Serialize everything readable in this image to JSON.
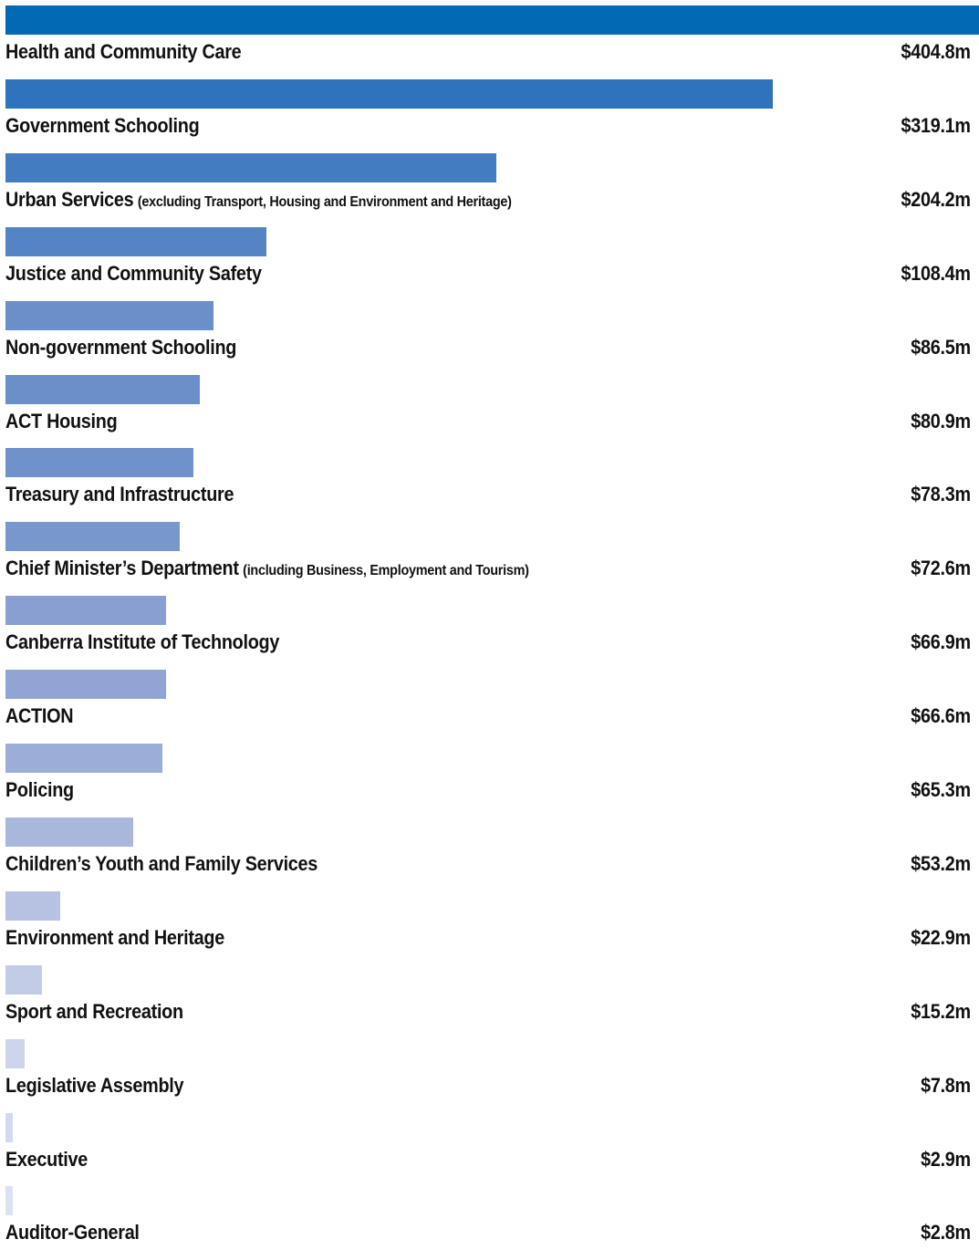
{
  "chart_data": {
    "type": "bar",
    "orientation": "horizontal",
    "categories": [
      "Health and Community Care",
      "Government Schooling",
      "Urban Services",
      "Justice and Community Safety",
      "Non-government Schooling",
      "ACT Housing",
      "Treasury and Infrastructure",
      "Chief Minister’s Department",
      "Canberra Institute of Technology",
      "ACTION",
      "Policing",
      "Children’s Youth and Family Services",
      "Environment and Heritage",
      "Sport and Recreation",
      "Legislative Assembly",
      "Executive",
      "Auditor-General"
    ],
    "values": [
      404.8,
      319.1,
      204.2,
      108.4,
      86.5,
      80.9,
      78.3,
      72.6,
      66.9,
      66.6,
      65.3,
      53.2,
      22.9,
      15.2,
      7.8,
      2.9,
      2.8
    ],
    "notes": [
      "",
      "",
      "(excluding Transport, Housing and Environment and Heritage)",
      "",
      "",
      "",
      "",
      "(including Business, Employment and Tourism)",
      "",
      "",
      "",
      "",
      "",
      "",
      "",
      "",
      ""
    ],
    "value_labels": [
      "$404.8m",
      "$319.1m",
      "$204.2m",
      "$108.4m",
      "$86.5m",
      "$80.9m",
      "$78.3m",
      "$72.6m",
      "$66.9m",
      "$66.6m",
      "$65.3m",
      "$53.2m",
      "$22.9m",
      "$15.2m",
      "$7.8m",
      "$2.9m",
      "$2.8m"
    ],
    "colors": [
      "#006ab4",
      "#2d74bd",
      "#437cc1",
      "#5584c5",
      "#6b8fc9",
      "#6b8fc9",
      "#6f92cb",
      "#7797cd",
      "#8a9fd1",
      "#90a5d4",
      "#9cadd8",
      "#a9b7dc",
      "#b7c2e2",
      "#c3cce7",
      "#cdd4eb",
      "#d3d9ee",
      "#dde2f2"
    ],
    "xlim": [
      0,
      404.8
    ],
    "title": "",
    "xlabel": "",
    "ylabel": "",
    "grid": false,
    "legend": "none"
  }
}
